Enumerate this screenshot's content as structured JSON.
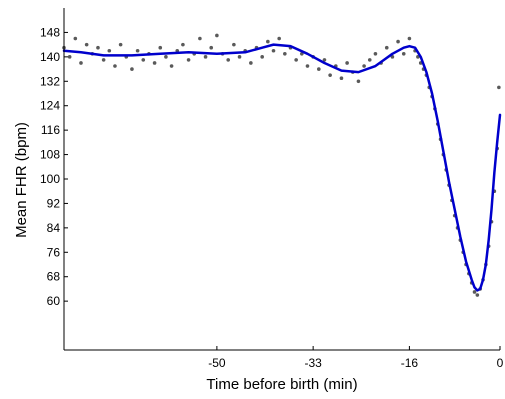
{
  "chart_data": {
    "type": "scatter",
    "title": "",
    "xlabel": "Time before birth (min)",
    "ylabel": "Mean FHR (bpm)",
    "xlim": [
      -77,
      0
    ],
    "ylim": [
      44,
      156
    ],
    "x_ticks": [
      -50,
      -33,
      -16,
      0
    ],
    "x_tick_labels": [
      "-50",
      "-33",
      "-16",
      "0"
    ],
    "y_ticks": [
      60,
      68,
      76,
      84,
      92,
      100,
      108,
      116,
      124,
      132,
      140,
      148
    ],
    "y_tick_labels": [
      "60",
      "68",
      "76",
      "84",
      "92",
      "100",
      "108",
      "116",
      "124",
      "132",
      "140",
      "148"
    ],
    "grid": false,
    "series": [
      {
        "kind": "scatter",
        "color": "#5a5a5a",
        "points": [
          [
            -77,
            143
          ],
          [
            -76,
            140
          ],
          [
            -75,
            146
          ],
          [
            -74,
            138
          ],
          [
            -73,
            144
          ],
          [
            -72,
            141
          ],
          [
            -71,
            143
          ],
          [
            -70,
            139
          ],
          [
            -69,
            142
          ],
          [
            -68,
            137
          ],
          [
            -67,
            144
          ],
          [
            -66,
            140
          ],
          [
            -65,
            136
          ],
          [
            -64,
            142
          ],
          [
            -63,
            139
          ],
          [
            -62,
            141
          ],
          [
            -61,
            138
          ],
          [
            -60,
            143
          ],
          [
            -59,
            140
          ],
          [
            -58,
            137
          ],
          [
            -57,
            142
          ],
          [
            -56,
            144
          ],
          [
            -55,
            139
          ],
          [
            -54,
            141
          ],
          [
            -53,
            146
          ],
          [
            -52,
            140
          ],
          [
            -51,
            143
          ],
          [
            -50,
            147
          ],
          [
            -49,
            141
          ],
          [
            -48,
            139
          ],
          [
            -47,
            144
          ],
          [
            -46,
            140
          ],
          [
            -45,
            142
          ],
          [
            -44,
            138
          ],
          [
            -43,
            143
          ],
          [
            -42,
            140
          ],
          [
            -41,
            145
          ],
          [
            -40,
            142
          ],
          [
            -39,
            146
          ],
          [
            -38,
            141
          ],
          [
            -37,
            143
          ],
          [
            -36,
            139
          ],
          [
            -35,
            141
          ],
          [
            -34,
            137
          ],
          [
            -33,
            140
          ],
          [
            -32,
            136
          ],
          [
            -31,
            139
          ],
          [
            -30,
            134
          ],
          [
            -29,
            137
          ],
          [
            -28,
            133
          ],
          [
            -27,
            138
          ],
          [
            -26,
            135
          ],
          [
            -25,
            132
          ],
          [
            -24,
            137
          ],
          [
            -23,
            139
          ],
          [
            -22,
            141
          ],
          [
            -21,
            138
          ],
          [
            -20,
            143
          ],
          [
            -19,
            140
          ],
          [
            -18,
            145
          ],
          [
            -17,
            141
          ],
          [
            -16,
            146
          ],
          [
            -15,
            142
          ],
          [
            -14.5,
            140
          ],
          [
            -14,
            138
          ],
          [
            -13.5,
            136
          ],
          [
            -13,
            134
          ],
          [
            -12.5,
            130
          ],
          [
            -12,
            127
          ],
          [
            -11.5,
            123
          ],
          [
            -11,
            118
          ],
          [
            -10.5,
            113
          ],
          [
            -10,
            108
          ],
          [
            -9.5,
            103
          ],
          [
            -9,
            98
          ],
          [
            -8.5,
            93
          ],
          [
            -8,
            88
          ],
          [
            -7.5,
            84
          ],
          [
            -7,
            80
          ],
          [
            -6.5,
            76
          ],
          [
            -6,
            72
          ],
          [
            -5.5,
            69
          ],
          [
            -5,
            66
          ],
          [
            -4.5,
            63
          ],
          [
            -4,
            62
          ],
          [
            -3.5,
            64
          ],
          [
            -3,
            67
          ],
          [
            -2.5,
            72
          ],
          [
            -2,
            78
          ],
          [
            -1.5,
            86
          ],
          [
            -1,
            96
          ],
          [
            -0.5,
            110
          ],
          [
            -0.2,
            130
          ]
        ]
      },
      {
        "kind": "line",
        "color": "#0000cc",
        "points": [
          [
            -77,
            142
          ],
          [
            -74,
            141.5
          ],
          [
            -70,
            140.5
          ],
          [
            -65,
            140.5
          ],
          [
            -60,
            141
          ],
          [
            -55,
            141.5
          ],
          [
            -50,
            141
          ],
          [
            -45,
            141.5
          ],
          [
            -42,
            143
          ],
          [
            -40,
            144
          ],
          [
            -37,
            143.5
          ],
          [
            -34,
            141
          ],
          [
            -31,
            138
          ],
          [
            -28,
            135.5
          ],
          [
            -25,
            135
          ],
          [
            -22,
            137
          ],
          [
            -19,
            141
          ],
          [
            -17,
            143
          ],
          [
            -16,
            143.5
          ],
          [
            -15,
            143
          ],
          [
            -14,
            140
          ],
          [
            -13,
            135
          ],
          [
            -12,
            128
          ],
          [
            -11,
            119
          ],
          [
            -10,
            109
          ],
          [
            -9,
            99
          ],
          [
            -8,
            90
          ],
          [
            -7,
            81
          ],
          [
            -6,
            73
          ],
          [
            -5,
            67
          ],
          [
            -4.5,
            64.5
          ],
          [
            -4,
            63.5
          ],
          [
            -3.5,
            64
          ],
          [
            -3,
            67
          ],
          [
            -2.5,
            72
          ],
          [
            -2,
            80
          ],
          [
            -1.5,
            90
          ],
          [
            -1,
            102
          ],
          [
            -0.5,
            112
          ],
          [
            0,
            121
          ]
        ]
      }
    ]
  }
}
